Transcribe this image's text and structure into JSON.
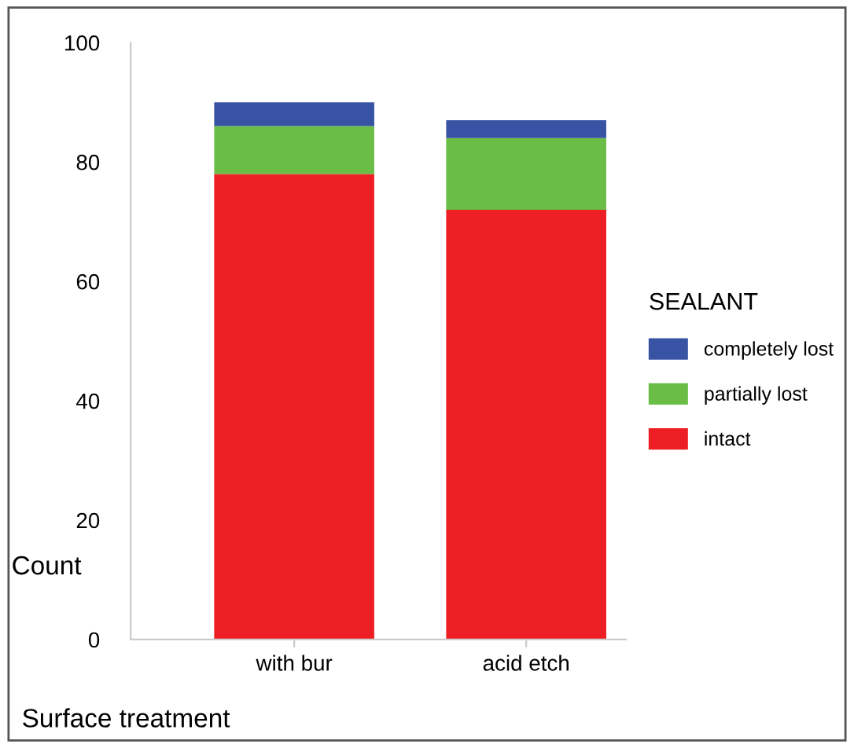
{
  "chart_data": {
    "type": "bar",
    "stacked": true,
    "xlabel": "Surface treatment",
    "ylabel": "Count",
    "legend_title": "SEALANT",
    "categories": [
      "with bur",
      "acid etch"
    ],
    "series": [
      {
        "name": "intact",
        "color": "#ee1f24",
        "values": [
          78,
          72
        ]
      },
      {
        "name": "partially lost",
        "color": "#6abd45",
        "values": [
          8,
          12
        ]
      },
      {
        "name": "completely lost",
        "color": "#3953a4",
        "values": [
          4,
          3
        ]
      }
    ],
    "ylim": [
      0,
      100
    ],
    "yticks": [
      0,
      20,
      40,
      60,
      80,
      100
    ],
    "grid": false,
    "legend": "right"
  }
}
